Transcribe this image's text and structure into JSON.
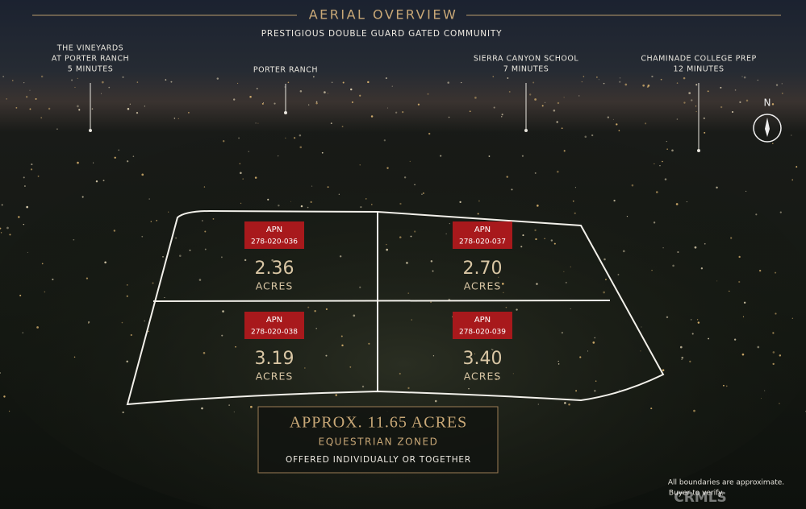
{
  "header": {
    "title": "AERIAL OVERVIEW",
    "subtitle": "PRESTIGIOUS DOUBLE GUARD GATED COMMUNITY"
  },
  "landmarks": [
    {
      "lines": [
        "THE VINEYARDS",
        "AT PORTER RANCH",
        "5 MINUTES"
      ]
    },
    {
      "lines": [
        "PORTER RANCH"
      ]
    },
    {
      "lines": [
        "SIERRA CANYON SCHOOL",
        "7 MINUTES"
      ]
    },
    {
      "lines": [
        "CHAMINADE COLLEGE PREP",
        "12 MINUTES"
      ]
    }
  ],
  "compass": "N",
  "parcels": [
    {
      "apn_label": "APN",
      "apn": "278-020-036",
      "acres": "2.36",
      "unit": "ACRES"
    },
    {
      "apn_label": "APN",
      "apn": "278-020-037",
      "acres": "2.70",
      "unit": "ACRES"
    },
    {
      "apn_label": "APN",
      "apn": "278-020-038",
      "acres": "3.19",
      "unit": "ACRES"
    },
    {
      "apn_label": "APN",
      "apn": "278-020-039",
      "acres": "3.40",
      "unit": "ACRES"
    }
  ],
  "summary": {
    "headline": "APPROX. 11.65 ACRES",
    "zoning": "EQUESTRIAN ZONED",
    "offer": "OFFERED INDIVIDUALLY OR TOGETHER"
  },
  "disclaimer": [
    "All boundaries are approximate.",
    "Buyer to verify."
  ],
  "watermark": "CRMLS"
}
